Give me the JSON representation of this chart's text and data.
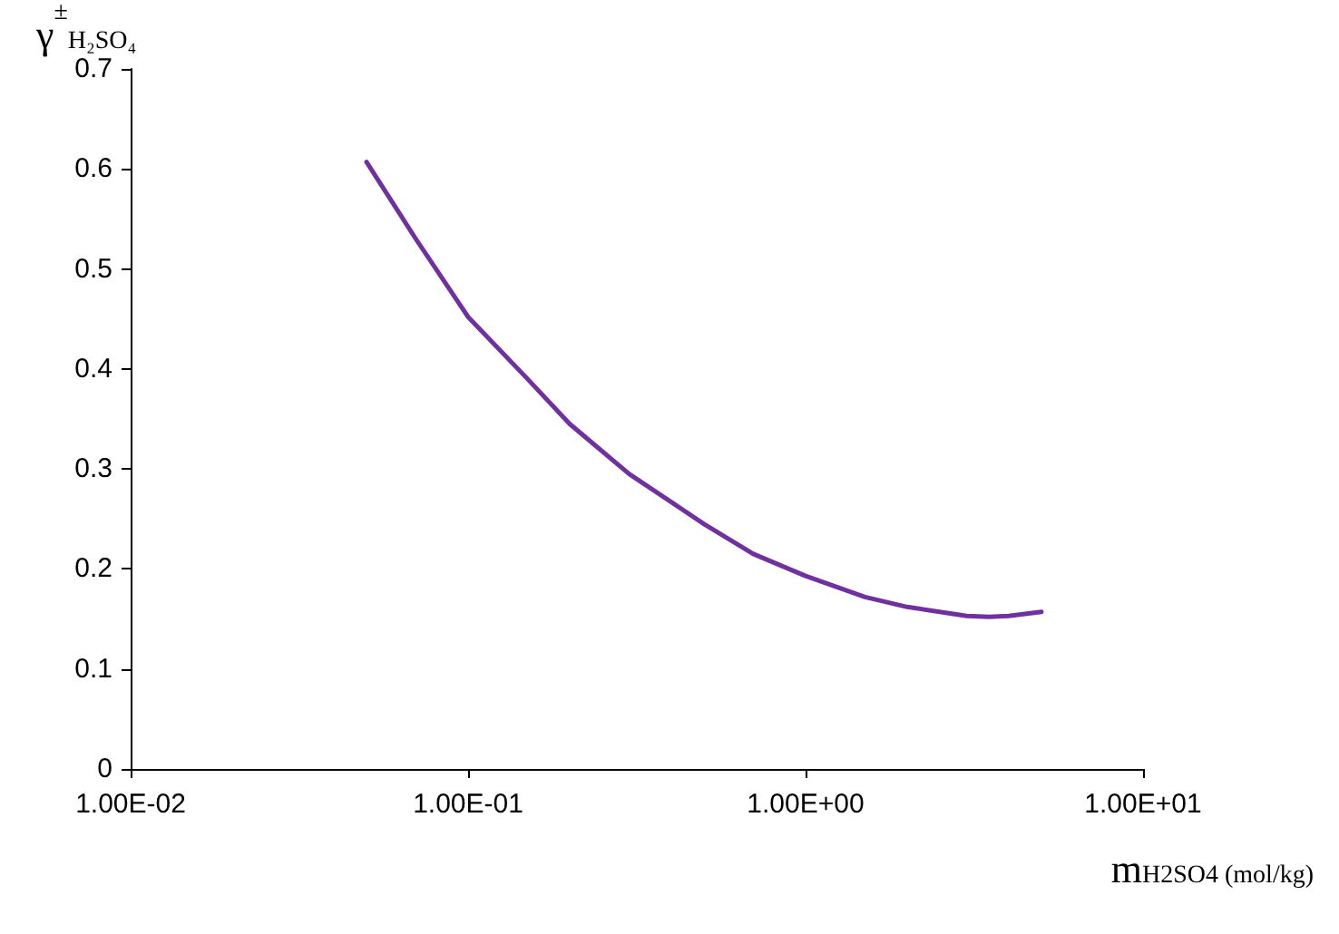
{
  "chart_data": {
    "type": "line",
    "ylabel": "γ$^{±}$$_{H₂SO₄}$",
    "xlabel": "m$_{H2SO4 (mol/kg)}$",
    "x": [
      0.05,
      0.07,
      0.1,
      0.15,
      0.2,
      0.3,
      0.5,
      0.7,
      1.0,
      1.5,
      2,
      3,
      3.5,
      4,
      5
    ],
    "series": [
      {
        "color": "#7030a0",
        "values": [
          0.607,
          0.53,
          0.452,
          0.39,
          0.345,
          0.295,
          0.245,
          0.215,
          0.193,
          0.172,
          0.162,
          0.153,
          0.152,
          0.153,
          0.157
        ]
      }
    ],
    "log": "x",
    "xlim": [
      0.01,
      10
    ],
    "xticks": [
      {
        "value": 0.01,
        "label": "1.00E-02"
      },
      {
        "value": 0.1,
        "label": "1.00E-01"
      },
      {
        "value": 1,
        "label": "1.00E+00"
      },
      {
        "value": 10,
        "label": "1.00E+01"
      }
    ],
    "ylim": [
      0,
      0.7
    ],
    "yticks": [
      0,
      0.1,
      0.2,
      0.3,
      0.4,
      0.5,
      0.6,
      0.7
    ],
    "marker": "none",
    "line_style": "solid"
  }
}
